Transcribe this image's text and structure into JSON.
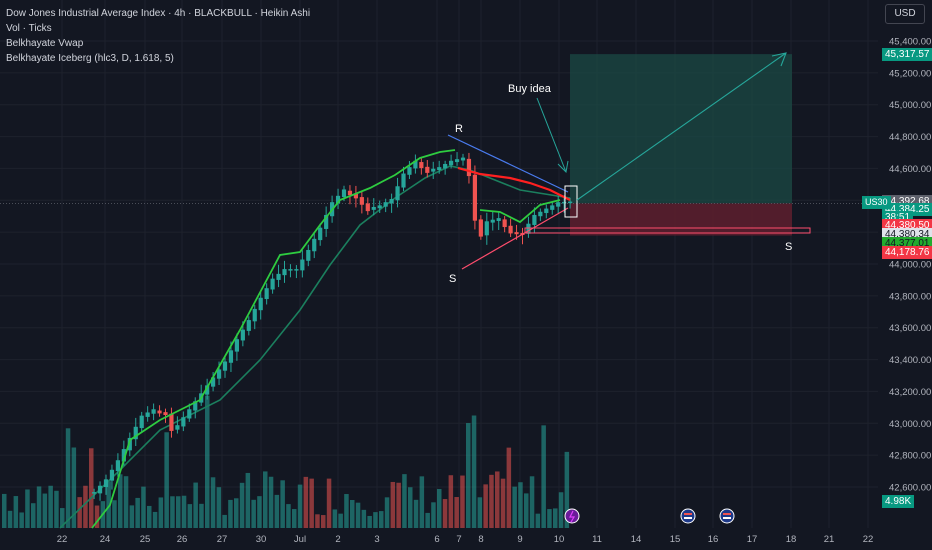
{
  "legend": {
    "title": "Dow Jones Industrial Average Index · 4h · BLACKBULL · Heikin Ashi",
    "vol": "Vol · Ticks",
    "vwap": "Belkhayate Vwap",
    "iceberg": "Belkhayate Iceberg (hlc3, D, 1.618, 5)"
  },
  "currency_button": "USD",
  "symbol_tag": "US30",
  "price_tags": [
    {
      "text": "45,317.57",
      "price": 45317.57,
      "bg": "#089981",
      "fg": "#ffffff"
    },
    {
      "text": "44,392.68",
      "price": 44392.68,
      "bg": "#5d606b",
      "fg": "#ffffff"
    },
    {
      "text": "44,384.25",
      "price": 44343,
      "bg": "#089981",
      "fg": "#ffffff"
    },
    {
      "text": "38:51",
      "price": 44290,
      "bg": "#089981",
      "fg": "#ffffff"
    },
    {
      "text": "44,380.50",
      "price": 44240,
      "bg": "#f23645",
      "fg": "#ffffff"
    },
    {
      "text": "44,380.34",
      "price": 44185,
      "bg": "#e0e3eb",
      "fg": "#131722"
    },
    {
      "text": "44,377.01",
      "price": 44130,
      "bg": "#22ab2e",
      "fg": "#131722"
    },
    {
      "text": "44,178.76",
      "price": 44075,
      "bg": "#f23645",
      "fg": "#ffffff"
    },
    {
      "text": "4.98K",
      "price": 42510,
      "bg": "#089981",
      "fg": "#ffffff"
    }
  ],
  "annotations": {
    "buy_idea": "Buy idea",
    "r_label": "R",
    "s_label_left": "S",
    "s_label_right": "S"
  },
  "colors": {
    "up": "#26a69a",
    "down": "#ef5350",
    "vwap_up": "#2ecc40",
    "vwap_down": "#ff2020",
    "ma": "#1b7f5e",
    "target_zone": "#1b4a44",
    "stop_zone": "#5e1f2e",
    "resistance": "#4a7cf0",
    "support": "#ff4d6d",
    "arrow": "#26a69a"
  },
  "chart_data": {
    "type": "candlestick",
    "title": "Dow Jones Industrial Average Index · 4h · BLACKBULL · Heikin Ashi",
    "xlabel": "",
    "ylabel": "",
    "x_ticks": [
      "22",
      "24",
      "25",
      "26",
      "27",
      "30",
      "Jul",
      "2",
      "3",
      "6",
      "7",
      "8",
      "9",
      "10",
      "11",
      "14",
      "15",
      "16",
      "17",
      "18",
      "21",
      "22"
    ],
    "y_ticks": [
      42600,
      42800,
      43000,
      43200,
      43400,
      43600,
      43800,
      44000,
      44200,
      44400,
      44600,
      44800,
      45000,
      45200,
      45400
    ],
    "ylim": [
      42490,
      45500
    ],
    "price_path": [
      [
        0,
        42560
      ],
      [
        2,
        42640
      ],
      [
        4,
        42760
      ],
      [
        6,
        42900
      ],
      [
        8,
        43040
      ],
      [
        10,
        43080
      ],
      [
        12,
        43060
      ],
      [
        13,
        42960
      ],
      [
        14,
        42980
      ],
      [
        16,
        43080
      ],
      [
        18,
        43180
      ],
      [
        20,
        43280
      ],
      [
        22,
        43380
      ],
      [
        24,
        43520
      ],
      [
        26,
        43640
      ],
      [
        28,
        43780
      ],
      [
        30,
        43900
      ],
      [
        32,
        43960
      ],
      [
        34,
        43960
      ],
      [
        36,
        44080
      ],
      [
        38,
        44220
      ],
      [
        40,
        44380
      ],
      [
        42,
        44460
      ],
      [
        44,
        44420
      ],
      [
        46,
        44340
      ],
      [
        48,
        44360
      ],
      [
        50,
        44400
      ],
      [
        52,
        44560
      ],
      [
        54,
        44640
      ],
      [
        56,
        44580
      ],
      [
        58,
        44600
      ],
      [
        60,
        44640
      ],
      [
        62,
        44660
      ],
      [
        63,
        44560
      ],
      [
        64,
        44280
      ],
      [
        65,
        44180
      ],
      [
        66,
        44260
      ],
      [
        68,
        44280
      ],
      [
        70,
        44200
      ],
      [
        72,
        44190
      ],
      [
        74,
        44300
      ],
      [
        76,
        44340
      ],
      [
        78,
        44380
      ],
      [
        80,
        44384
      ]
    ],
    "volume_bars": "Vol · Ticks histogram; last value 4.98K",
    "current_price": 44384.25,
    "trade_setup": {
      "entry": 44380.5,
      "target": 45317.57,
      "stop": 44178.76
    },
    "legend": [
      "Vol · Ticks",
      "Belkhayate Vwap",
      "Belkhayate Iceberg (hlc3, D, 1.618, 5)"
    ],
    "grid": true
  }
}
